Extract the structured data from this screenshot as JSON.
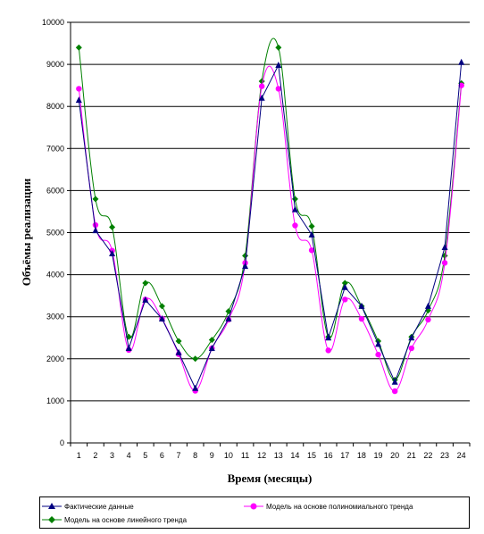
{
  "chart_data": {
    "type": "line",
    "title": "",
    "xlabel": "Время (месяцы)",
    "ylabel": "Объёмы реализации",
    "x": [
      1,
      2,
      3,
      4,
      5,
      6,
      7,
      8,
      9,
      10,
      11,
      12,
      13,
      14,
      15,
      16,
      17,
      18,
      19,
      20,
      21,
      22,
      23,
      24
    ],
    "xticks": [
      "1",
      "2",
      "3",
      "4",
      "5",
      "6",
      "7",
      "8",
      "9",
      "10",
      "11",
      "12",
      "13",
      "14",
      "15",
      "16",
      "17",
      "18",
      "19",
      "20",
      "21",
      "22",
      "23",
      "24"
    ],
    "ylim": [
      0,
      10000
    ],
    "yticks": [
      "0",
      "1000",
      "2000",
      "3000",
      "4000",
      "5000",
      "6000",
      "7000",
      "8000",
      "9000",
      "10000"
    ],
    "grid": "horizontal",
    "legend_position": "bottom",
    "series": [
      {
        "name": "Фактические данные",
        "color": "#000080",
        "marker": "triangle",
        "values": [
          8150,
          5050,
          4500,
          2250,
          3400,
          2950,
          2150,
          1300,
          2250,
          2950,
          4200,
          8200,
          8980,
          5550,
          4950,
          2500,
          3700,
          3250,
          2350,
          1450,
          2500,
          3250,
          4650,
          9050
        ]
      },
      {
        "name": "Модель на основе полиномиального тренда",
        "color": "#ff00ff",
        "marker": "circle",
        "values": [
          8420,
          5180,
          4570,
          2210,
          3410,
          2950,
          2110,
          1240,
          2250,
          2930,
          4280,
          8480,
          8420,
          5170,
          4580,
          2200,
          3410,
          2950,
          2100,
          1230,
          2250,
          2930,
          4280,
          8500
        ]
      },
      {
        "name": "Модель на основе линейного тренда",
        "color": "#008000",
        "marker": "diamond",
        "values": [
          9400,
          5800,
          5130,
          2520,
          3800,
          3250,
          2420,
          2000,
          2450,
          3130,
          4450,
          8600,
          9400,
          5800,
          5150,
          2520,
          3800,
          3250,
          2420,
          1500,
          2520,
          3150,
          4450,
          8550
        ]
      }
    ]
  }
}
